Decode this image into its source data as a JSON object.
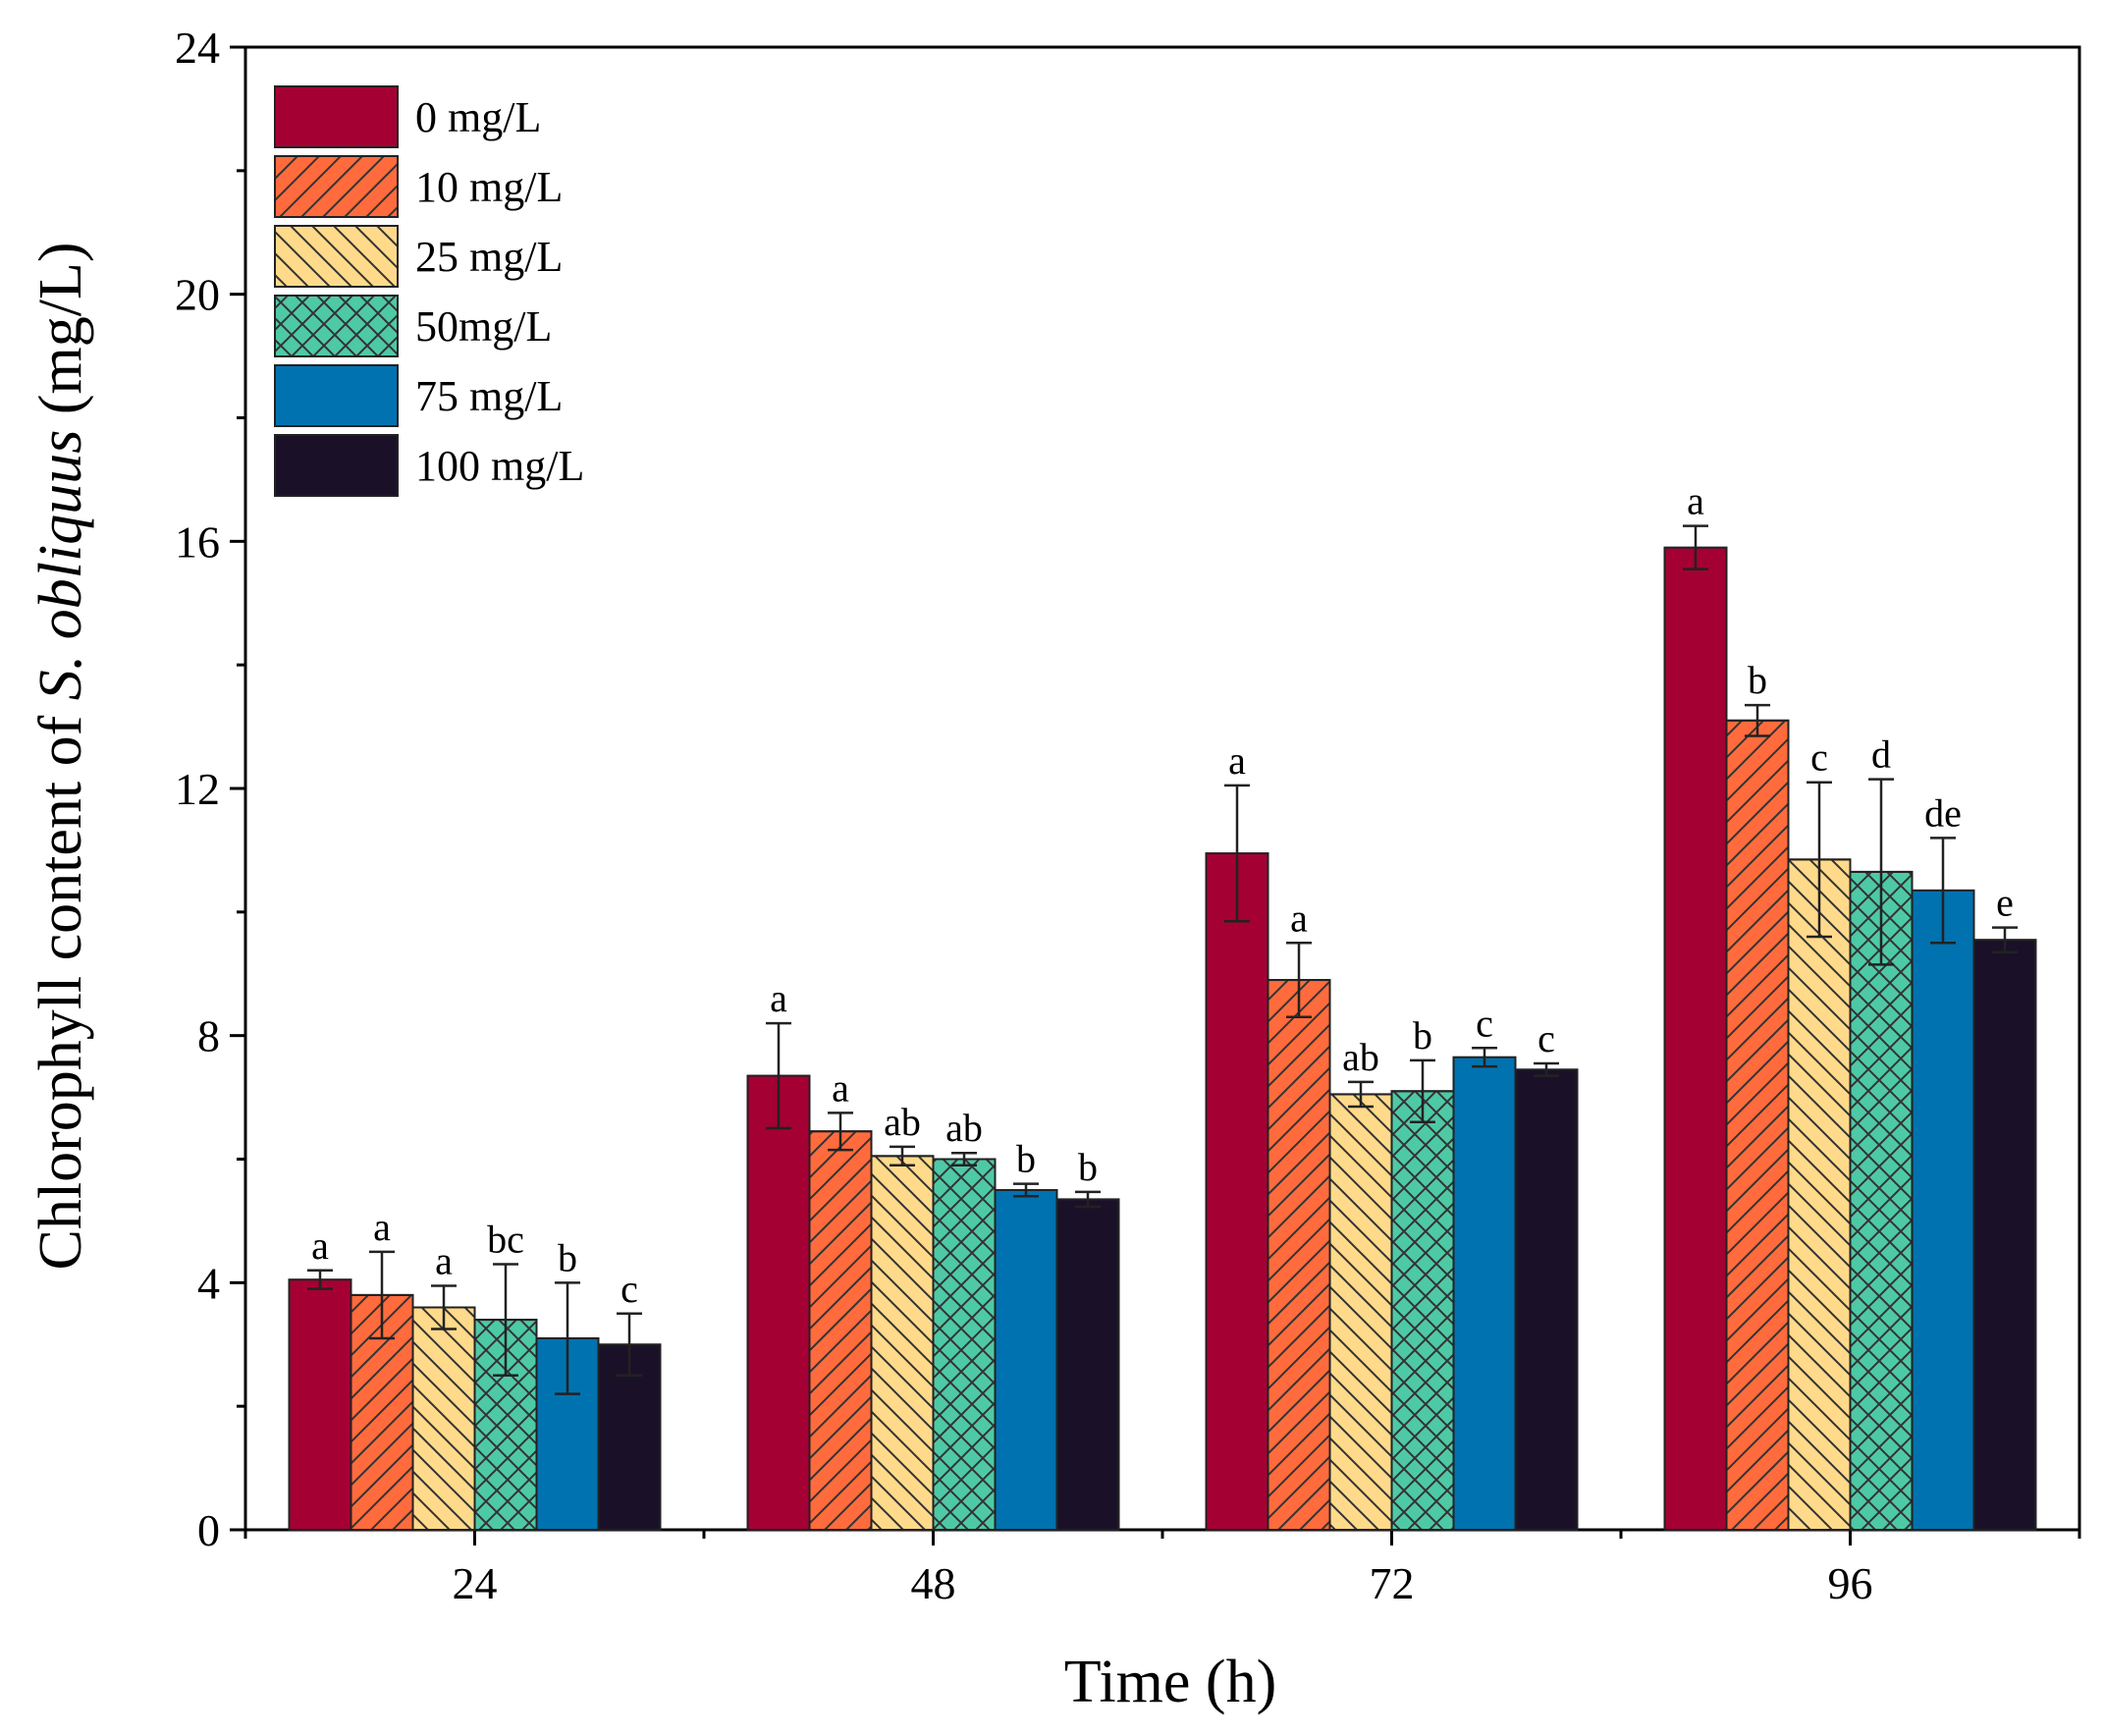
{
  "chart_data": {
    "type": "bar",
    "xlabel": "Time (h)",
    "ylabel_parts": [
      "Chlorophyll content of ",
      "S. obliquus",
      " (mg/L)"
    ],
    "categories": [
      "24",
      "48",
      "72",
      "96"
    ],
    "ylim": [
      0,
      24
    ],
    "yticks": [
      "0",
      "4",
      "8",
      "12",
      "16",
      "20",
      "24"
    ],
    "legend_position": "top-left",
    "series": [
      {
        "name": "0 mg/L",
        "color": "#A50034",
        "pattern": "none",
        "values": [
          4.05,
          7.35,
          10.95,
          15.9
        ],
        "errors": [
          0.15,
          0.85,
          1.1,
          0.35
        ],
        "letters": [
          "a",
          "a",
          "a",
          "a"
        ]
      },
      {
        "name": "10 mg/L",
        "color": "#FF6B3D",
        "pattern": "diag-forward",
        "values": [
          3.8,
          6.45,
          8.9,
          13.1
        ],
        "errors": [
          0.7,
          0.3,
          0.6,
          0.25
        ],
        "letters": [
          "a",
          "a",
          "a",
          "b"
        ]
      },
      {
        "name": "25 mg/L",
        "color": "#FFDA8A",
        "pattern": "diag-back",
        "values": [
          3.6,
          6.05,
          7.05,
          10.85
        ],
        "errors": [
          0.35,
          0.15,
          0.2,
          1.25
        ],
        "letters": [
          "a",
          "ab",
          "ab",
          "c"
        ]
      },
      {
        "name": "50mg/L",
        "color": "#4EC9A6",
        "pattern": "cross",
        "values": [
          3.4,
          6.0,
          7.1,
          10.65
        ],
        "errors": [
          0.9,
          0.1,
          0.5,
          1.5
        ],
        "letters": [
          "bc",
          "ab",
          "b",
          "d"
        ]
      },
      {
        "name": "75 mg/L",
        "color": "#0072B0",
        "pattern": "none",
        "values": [
          3.1,
          5.5,
          7.65,
          10.35
        ],
        "errors": [
          0.9,
          0.1,
          0.15,
          0.85
        ],
        "letters": [
          "b",
          "b",
          "c",
          "de"
        ]
      },
      {
        "name": "100 mg/L",
        "color": "#1A1128",
        "pattern": "none",
        "values": [
          3.0,
          5.35,
          7.45,
          9.55
        ],
        "errors": [
          0.5,
          0.12,
          0.1,
          0.2
        ],
        "letters": [
          "c",
          "b",
          "c",
          "e"
        ]
      }
    ]
  }
}
